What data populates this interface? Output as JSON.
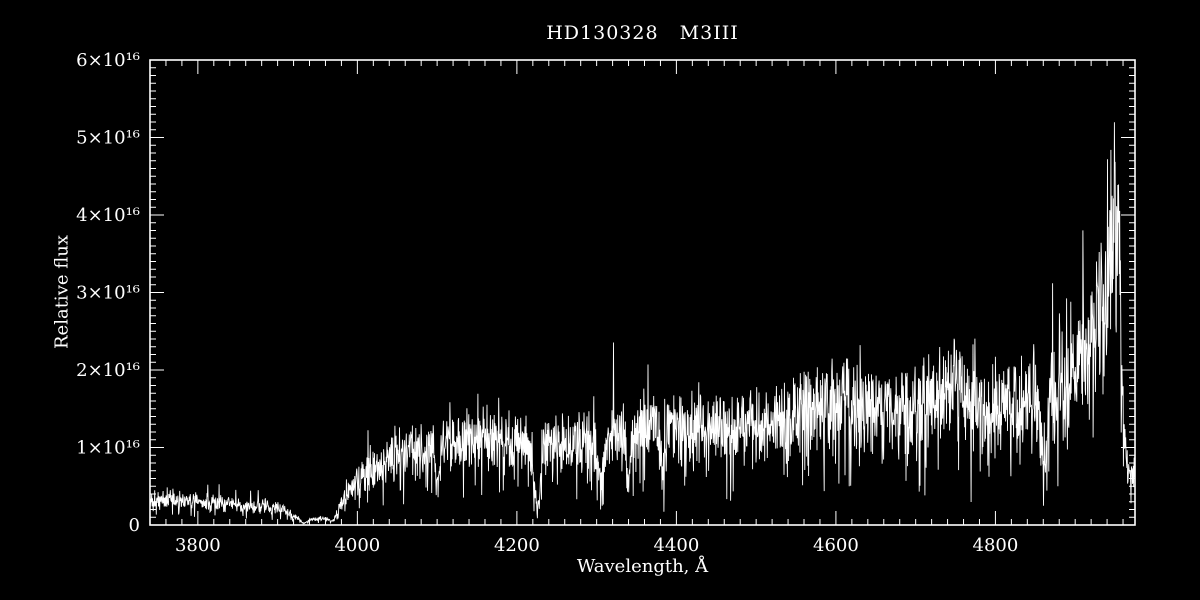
{
  "chart_data": {
    "type": "line",
    "title": "HD130328   M3III",
    "xlabel": "Wavelength, Å",
    "ylabel": "Relative flux",
    "xlim": [
      3740,
      4975
    ],
    "ylim": [
      0,
      6e+16
    ],
    "x_major_ticks": [
      3800,
      4000,
      4200,
      4400,
      4600,
      4800
    ],
    "x_minor_step": 20,
    "y_major_values_1e16": [
      0,
      1,
      2,
      3,
      4,
      5,
      6
    ],
    "y_tick_labels": [
      "0",
      "1×10¹⁶",
      "2×10¹⁶",
      "3×10¹⁶",
      "4×10¹⁶",
      "5×10¹⁶",
      "6×10¹⁶"
    ],
    "y_minor_step_1e16": 0.1,
    "grid": false,
    "legend": false,
    "background": "#000000",
    "foreground": "#ffffff",
    "series": [
      {
        "name": "HD130328 spectrum",
        "n_points": 2600,
        "envelope_x": [
          3740,
          3770,
          3800,
          3840,
          3880,
          3905,
          3920,
          3940,
          3960,
          3975,
          3990,
          4010,
          4040,
          4070,
          4100,
          4140,
          4180,
          4220,
          4260,
          4300,
          4340,
          4380,
          4420,
          4460,
          4500,
          4540,
          4580,
          4620,
          4660,
          4700,
          4730,
          4755,
          4770,
          4790,
          4815,
          4840,
          4865,
          4890,
          4910,
          4930,
          4945,
          4953,
          4958,
          4964,
          4970,
          4975
        ],
        "envelope_y_1e16": [
          0.32,
          0.33,
          0.3,
          0.27,
          0.24,
          0.22,
          0.12,
          0.07,
          0.09,
          0.2,
          0.42,
          0.65,
          0.85,
          0.95,
          1.0,
          1.1,
          1.05,
          1.0,
          1.05,
          1.1,
          1.18,
          1.28,
          1.22,
          1.28,
          1.25,
          1.32,
          1.5,
          1.55,
          1.42,
          1.52,
          1.6,
          1.85,
          1.45,
          1.4,
          1.52,
          1.55,
          1.62,
          1.8,
          2.1,
          2.6,
          3.3,
          4.2,
          2.0,
          0.7,
          0.65,
          0.75
        ],
        "absorption_lines": [
          {
            "center": 3933,
            "width": 6,
            "depth": 0.75
          },
          {
            "center": 3968,
            "width": 6,
            "depth": 0.7
          },
          {
            "center": 4101,
            "width": 4,
            "depth": 0.5
          },
          {
            "center": 4226,
            "width": 5,
            "depth": 0.8
          },
          {
            "center": 4305,
            "width": 6,
            "depth": 0.45
          },
          {
            "center": 4340,
            "width": 4,
            "depth": 0.5
          },
          {
            "center": 4383,
            "width": 4,
            "depth": 0.5
          },
          {
            "center": 4861,
            "width": 5,
            "depth": 0.55
          }
        ],
        "noise": {
          "seed": 1337,
          "hf_amp": 0.5,
          "hf_amp2": 0.42,
          "dip_prob": 0.06,
          "dip_min": 0.3,
          "dip_range": 0.45,
          "spike_prob": 0.03,
          "spike_min": 1.22,
          "spike_range": 0.45
        }
      }
    ]
  }
}
